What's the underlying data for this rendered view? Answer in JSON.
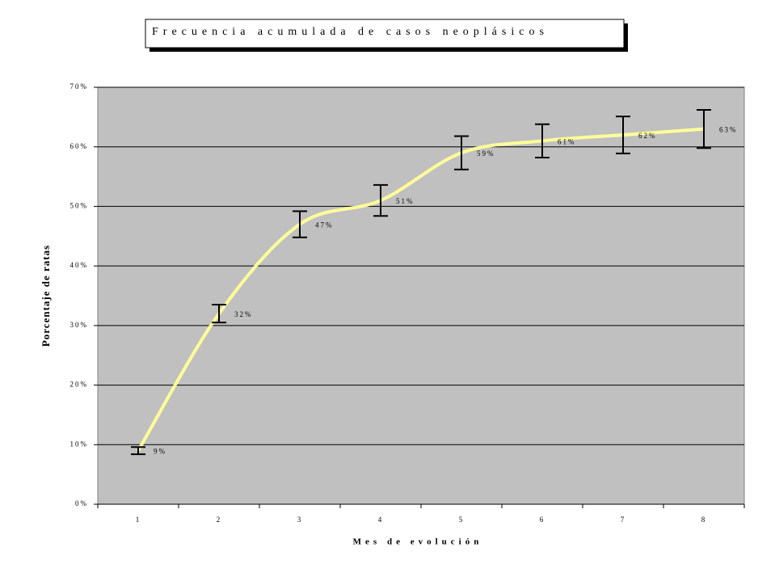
{
  "chart_data": {
    "type": "line",
    "title": "Frecuencia acumulada de casos neoplásicos",
    "xlabel": "Mes de evolución",
    "ylabel": "Porcentaje de ratas",
    "categories": [
      "1",
      "2",
      "3",
      "4",
      "5",
      "6",
      "7",
      "8"
    ],
    "values": [
      9,
      32,
      47,
      51,
      59,
      61,
      62,
      63
    ],
    "errors": [
      0.6,
      1.5,
      2.2,
      2.6,
      2.8,
      2.8,
      3.1,
      3.2
    ],
    "value_labels": [
      "9%",
      "32%",
      "47%",
      "51%",
      "59%",
      "61%",
      "62%",
      "63%"
    ],
    "color": "#ffff99",
    "error_color": "#000000",
    "plot_background": "#c0c0c0",
    "ylim": [
      0,
      70
    ],
    "yticks": [
      {
        "value": 0,
        "label": "0%"
      },
      {
        "value": 10,
        "label": "10%"
      },
      {
        "value": 20,
        "label": "20%"
      },
      {
        "value": 30,
        "label": "30%"
      },
      {
        "value": 40,
        "label": "40%"
      },
      {
        "value": 50,
        "label": "50%"
      },
      {
        "value": 60,
        "label": "60%"
      },
      {
        "value": 70,
        "label": "70%"
      }
    ],
    "grid": true
  }
}
